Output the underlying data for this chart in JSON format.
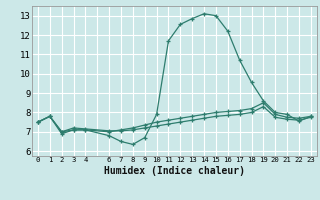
{
  "xlabel": "Humidex (Indice chaleur)",
  "bg_color": "#cce8e8",
  "grid_color": "#ffffff",
  "line_color": "#2e7d6e",
  "xlim": [
    -0.5,
    23.5
  ],
  "ylim": [
    5.75,
    13.5
  ],
  "yticks": [
    6,
    7,
    8,
    9,
    10,
    11,
    12,
    13
  ],
  "line1_x": [
    0,
    1,
    2,
    3,
    4,
    6,
    7,
    8,
    9,
    10,
    11,
    12,
    13,
    14,
    15,
    16,
    17,
    18,
    19,
    20,
    21,
    22,
    23
  ],
  "line1_y": [
    7.5,
    7.8,
    6.9,
    7.1,
    7.1,
    6.8,
    6.5,
    6.35,
    6.7,
    7.9,
    11.7,
    12.55,
    12.85,
    13.1,
    13.0,
    12.2,
    10.7,
    9.55,
    8.6,
    8.0,
    7.9,
    7.55,
    7.8
  ],
  "line2_x": [
    0,
    1,
    2,
    3,
    4,
    6,
    7,
    8,
    9,
    10,
    11,
    12,
    13,
    14,
    15,
    16,
    17,
    18,
    19,
    20,
    21,
    22,
    23
  ],
  "line2_y": [
    7.5,
    7.8,
    7.0,
    7.1,
    7.1,
    7.0,
    7.1,
    7.2,
    7.35,
    7.5,
    7.6,
    7.7,
    7.8,
    7.9,
    8.0,
    8.05,
    8.1,
    8.2,
    8.5,
    7.9,
    7.75,
    7.7,
    7.8
  ],
  "line3_x": [
    0,
    1,
    2,
    3,
    4,
    6,
    7,
    8,
    9,
    10,
    11,
    12,
    13,
    14,
    15,
    16,
    17,
    18,
    19,
    20,
    21,
    22,
    23
  ],
  "line3_y": [
    7.5,
    7.8,
    7.0,
    7.2,
    7.15,
    7.05,
    7.05,
    7.1,
    7.2,
    7.3,
    7.4,
    7.5,
    7.6,
    7.7,
    7.8,
    7.85,
    7.9,
    8.0,
    8.3,
    7.75,
    7.65,
    7.6,
    7.75
  ]
}
